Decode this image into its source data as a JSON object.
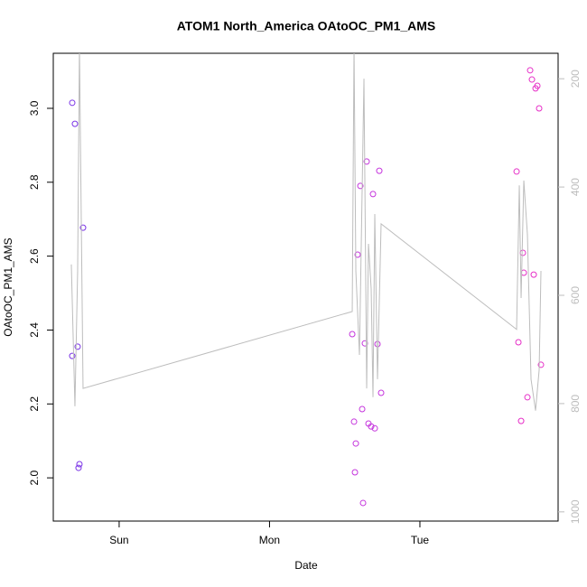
{
  "chart_data": {
    "type": "scatter",
    "title": "ATOM1 North_America OAtoOC_PM1_AMS",
    "x_label": "Date",
    "y_label": "OAtoOC_PM1_AMS",
    "xlim": [
      -0.438,
      2.919
    ],
    "xticks": [
      {
        "value": 0,
        "label": "Sun"
      },
      {
        "value": 1,
        "label": "Mon"
      },
      {
        "value": 2,
        "label": "Tue"
      }
    ],
    "ylim": [
      1.883,
      3.149
    ],
    "yticks": [
      {
        "value": 2,
        "label": "2.0"
      },
      2.2,
      2.4,
      2.6,
      2.8,
      {
        "value": 3,
        "label": "3.0"
      }
    ],
    "y2lim": [
      1017,
      153
    ],
    "y2ticks": [
      200,
      400,
      600,
      800,
      1000
    ],
    "series": [
      {
        "x": [
          -0.312,
          -0.294,
          -0.24,
          -0.276,
          -0.312,
          -0.264,
          -0.27,
          1.55,
          1.562,
          1.568,
          1.574,
          1.586,
          1.604,
          1.616,
          1.622,
          1.634,
          1.646,
          1.658,
          1.676,
          1.688,
          1.7,
          1.718,
          1.73,
          1.742,
          2.643,
          2.655,
          2.673,
          2.685,
          2.691,
          2.715,
          2.733,
          2.745,
          2.757,
          2.769,
          2.781,
          2.793,
          2.805
        ],
        "values": [
          3.015,
          2.958,
          2.677,
          2.355,
          2.33,
          2.037,
          2.027,
          2.389,
          2.152,
          2.015,
          2.093,
          2.604,
          2.79,
          2.186,
          1.932,
          2.364,
          2.856,
          2.147,
          2.139,
          2.768,
          2.134,
          2.362,
          2.831,
          2.23,
          2.829,
          2.367,
          2.154,
          2.609,
          2.555,
          2.218,
          3.103,
          3.078,
          2.55,
          3.054,
          3.061,
          3.0,
          2.306
        ],
        "colors": [
          "#7a33e6",
          "#7a33e6",
          "#7a33e6",
          "#7a33e6",
          "#7a33e6",
          "#7a33e6",
          "#7a33e6",
          "#c535dd",
          "#c535dd",
          "#c535dd",
          "#c535dd",
          "#c535dd",
          "#c535dd",
          "#c535dd",
          "#c535dd",
          "#c535dd",
          "#c535dd",
          "#c535dd",
          "#c535dd",
          "#c535dd",
          "#c535dd",
          "#c535dd",
          "#c535dd",
          "#c535dd",
          "#e62ec7",
          "#e62ec7",
          "#e62ec7",
          "#e62ec7",
          "#e62ec7",
          "#e62ec7",
          "#e62ec7",
          "#e62ec7",
          "#e62ec7",
          "#e62ec7",
          "#e62ec7",
          "#e62ec7",
          "#e62ec7"
        ]
      },
      {
        "type": "line",
        "axis": "y2",
        "color": "#bdbdbd",
        "x": [
          -0.318,
          -0.294,
          -0.276,
          -0.264,
          -0.24,
          1.55,
          1.562,
          1.574,
          1.598,
          1.628,
          1.646,
          1.658,
          1.676,
          1.688,
          1.7,
          1.718,
          1.742,
          2.643,
          2.661,
          2.673,
          2.691,
          2.715,
          2.739,
          2.769,
          2.793,
          2.805
        ],
        "values": [
          543,
          805,
          555,
          140,
          772,
          630,
          140,
          555,
          710,
          200,
          772,
          505,
          588,
          788,
          450,
          755,
          468,
          663,
          397,
          605,
          388,
          488,
          755,
          813,
          738,
          555
        ]
      }
    ]
  }
}
